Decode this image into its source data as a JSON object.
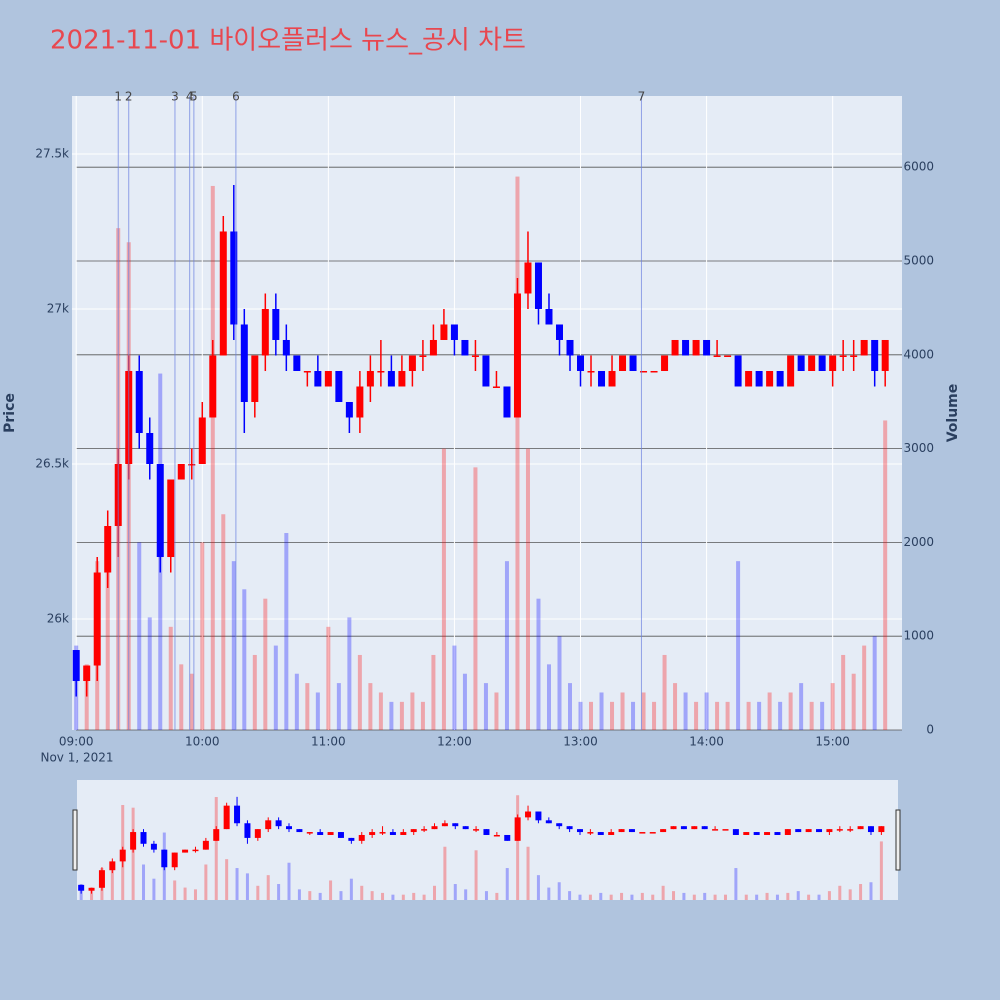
{
  "chart_data": {
    "type": "candlestick",
    "title": "2021-11-01 바이오플러스 뉴스_공시 차트",
    "y_label": "Price",
    "y2_label": "Volume",
    "x_date_label": "Nov 1, 2021",
    "increasing_color": "#ff0000",
    "decreasing_color": "#0000ff",
    "xlim": [
      "08:58",
      "15:33"
    ],
    "xticks": [
      "09:00",
      "10:00",
      "11:00",
      "12:00",
      "13:00",
      "14:00",
      "15:00"
    ],
    "ylim": [
      25642,
      27687
    ],
    "yticks": [
      {
        "value": 26000,
        "label": "26k"
      },
      {
        "value": 26500,
        "label": "26.5k"
      },
      {
        "value": 27000,
        "label": "27k"
      },
      {
        "value": 27500,
        "label": "27.5k"
      }
    ],
    "y2lim": [
      0,
      6759
    ],
    "y2ticks": [
      0,
      1000,
      2000,
      3000,
      4000,
      5000,
      6000
    ],
    "x": [
      "09:00",
      "09:05",
      "09:10",
      "09:15",
      "09:20",
      "09:25",
      "09:30",
      "09:35",
      "09:40",
      "09:45",
      "09:50",
      "09:55",
      "10:00",
      "10:05",
      "10:10",
      "10:15",
      "10:20",
      "10:25",
      "10:30",
      "10:35",
      "10:40",
      "10:45",
      "10:50",
      "10:55",
      "11:00",
      "11:05",
      "11:10",
      "11:15",
      "11:20",
      "11:25",
      "11:30",
      "11:35",
      "11:40",
      "11:45",
      "11:50",
      "11:55",
      "12:00",
      "12:05",
      "12:10",
      "12:15",
      "12:20",
      "12:25",
      "12:30",
      "12:35",
      "12:40",
      "12:45",
      "12:50",
      "12:55",
      "13:00",
      "13:05",
      "13:10",
      "13:15",
      "13:20",
      "13:25",
      "13:30",
      "13:35",
      "13:40",
      "13:45",
      "13:50",
      "13:55",
      "14:00",
      "14:05",
      "14:10",
      "14:15",
      "14:20",
      "14:25",
      "14:30",
      "14:35",
      "14:40",
      "14:45",
      "14:50",
      "14:55",
      "15:00",
      "15:05",
      "15:10",
      "15:15",
      "15:20",
      "15:25"
    ],
    "open": [
      25900,
      25800,
      25850,
      26150,
      26300,
      26500,
      26800,
      26600,
      26500,
      26200,
      26450,
      26500,
      26500,
      26650,
      26850,
      27250,
      26950,
      26700,
      26850,
      27000,
      26900,
      26850,
      26800,
      26800,
      26750,
      26800,
      26700,
      26650,
      26750,
      26800,
      26800,
      26750,
      26800,
      26850,
      26850,
      26900,
      26950,
      26900,
      26850,
      26850,
      26750,
      26750,
      26650,
      27050,
      27150,
      27000,
      26950,
      26900,
      26850,
      26800,
      26800,
      26750,
      26800,
      26850,
      26800,
      26800,
      26800,
      26850,
      26900,
      26850,
      26900,
      26850,
      26850,
      26850,
      26750,
      26800,
      26750,
      26800,
      26750,
      26850,
      26800,
      26850,
      26800,
      26850,
      26850,
      26850,
      26900,
      26800
    ],
    "high": [
      25900,
      25850,
      26200,
      26350,
      26550,
      26850,
      26850,
      26650,
      26500,
      26450,
      26500,
      26550,
      26700,
      26900,
      27300,
      27400,
      27000,
      26850,
      27050,
      27050,
      26950,
      26850,
      26800,
      26850,
      26800,
      26800,
      26700,
      26800,
      26850,
      26900,
      26850,
      26850,
      26850,
      26900,
      26950,
      27000,
      26950,
      26900,
      26900,
      26850,
      26800,
      26750,
      27100,
      27250,
      27150,
      27050,
      26950,
      26900,
      26850,
      26850,
      26800,
      26850,
      26850,
      26850,
      26800,
      26800,
      26850,
      26900,
      26900,
      26900,
      26900,
      26900,
      26850,
      26850,
      26800,
      26800,
      26800,
      26800,
      26850,
      26850,
      26850,
      26850,
      26850,
      26900,
      26900,
      26900,
      26900,
      26900
    ],
    "low": [
      25750,
      25750,
      25800,
      26100,
      26200,
      26450,
      26550,
      26450,
      26150,
      26150,
      26450,
      26450,
      26500,
      26650,
      26850,
      26900,
      26600,
      26650,
      26800,
      26850,
      26800,
      26800,
      26750,
      26750,
      26750,
      26700,
      26600,
      26600,
      26700,
      26750,
      26750,
      26750,
      26750,
      26800,
      26850,
      26900,
      26850,
      26850,
      26800,
      26750,
      26750,
      26650,
      26650,
      27000,
      26950,
      26950,
      26850,
      26800,
      26750,
      26750,
      26750,
      26750,
      26800,
      26800,
      26800,
      26800,
      26800,
      26850,
      26850,
      26850,
      26850,
      26850,
      26850,
      26750,
      26750,
      26750,
      26750,
      26750,
      26750,
      26800,
      26800,
      26800,
      26750,
      26800,
      26800,
      26850,
      26750,
      26750
    ],
    "close": [
      25800,
      25850,
      26150,
      26300,
      26500,
      26800,
      26600,
      26500,
      26200,
      26450,
      26500,
      26500,
      26650,
      26850,
      27250,
      26950,
      26700,
      26850,
      27000,
      26900,
      26850,
      26800,
      26800,
      26750,
      26800,
      26700,
      26650,
      26750,
      26800,
      26800,
      26750,
      26800,
      26850,
      26850,
      26900,
      26950,
      26900,
      26850,
      26850,
      26750,
      26750,
      26650,
      27050,
      27150,
      27000,
      26950,
      26900,
      26850,
      26800,
      26800,
      26750,
      26800,
      26850,
      26800,
      26800,
      26800,
      26850,
      26900,
      26850,
      26900,
      26850,
      26850,
      26850,
      26750,
      26800,
      26750,
      26800,
      26750,
      26850,
      26800,
      26850,
      26800,
      26850,
      26850,
      26850,
      26900,
      26800,
      26900
    ],
    "volume": [
      900,
      700,
      1800,
      2100,
      5350,
      5200,
      2000,
      1200,
      3800,
      1100,
      700,
      600,
      2000,
      5800,
      2300,
      1800,
      1500,
      800,
      1400,
      900,
      2100,
      600,
      500,
      400,
      1100,
      500,
      1200,
      800,
      500,
      400,
      300,
      300,
      400,
      300,
      800,
      3000,
      900,
      600,
      2800,
      500,
      400,
      1800,
      5900,
      3000,
      1400,
      700,
      1000,
      500,
      300,
      300,
      400,
      300,
      400,
      300,
      400,
      300,
      800,
      500,
      400,
      300,
      400,
      300,
      300,
      1800,
      300,
      300,
      400,
      300,
      400,
      500,
      300,
      300,
      500,
      800,
      600,
      900,
      1000,
      3300
    ],
    "annotations": [
      {
        "text": "1",
        "x": "09:20"
      },
      {
        "text": "2",
        "x": "09:25"
      },
      {
        "text": "3",
        "x": "09:47"
      },
      {
        "text": "4",
        "x": "09:54"
      },
      {
        "text": "5",
        "x": "09:56"
      },
      {
        "text": "6",
        "x": "10:16"
      },
      {
        "text": "7",
        "x": "13:29"
      }
    ],
    "range_slider": true
  }
}
